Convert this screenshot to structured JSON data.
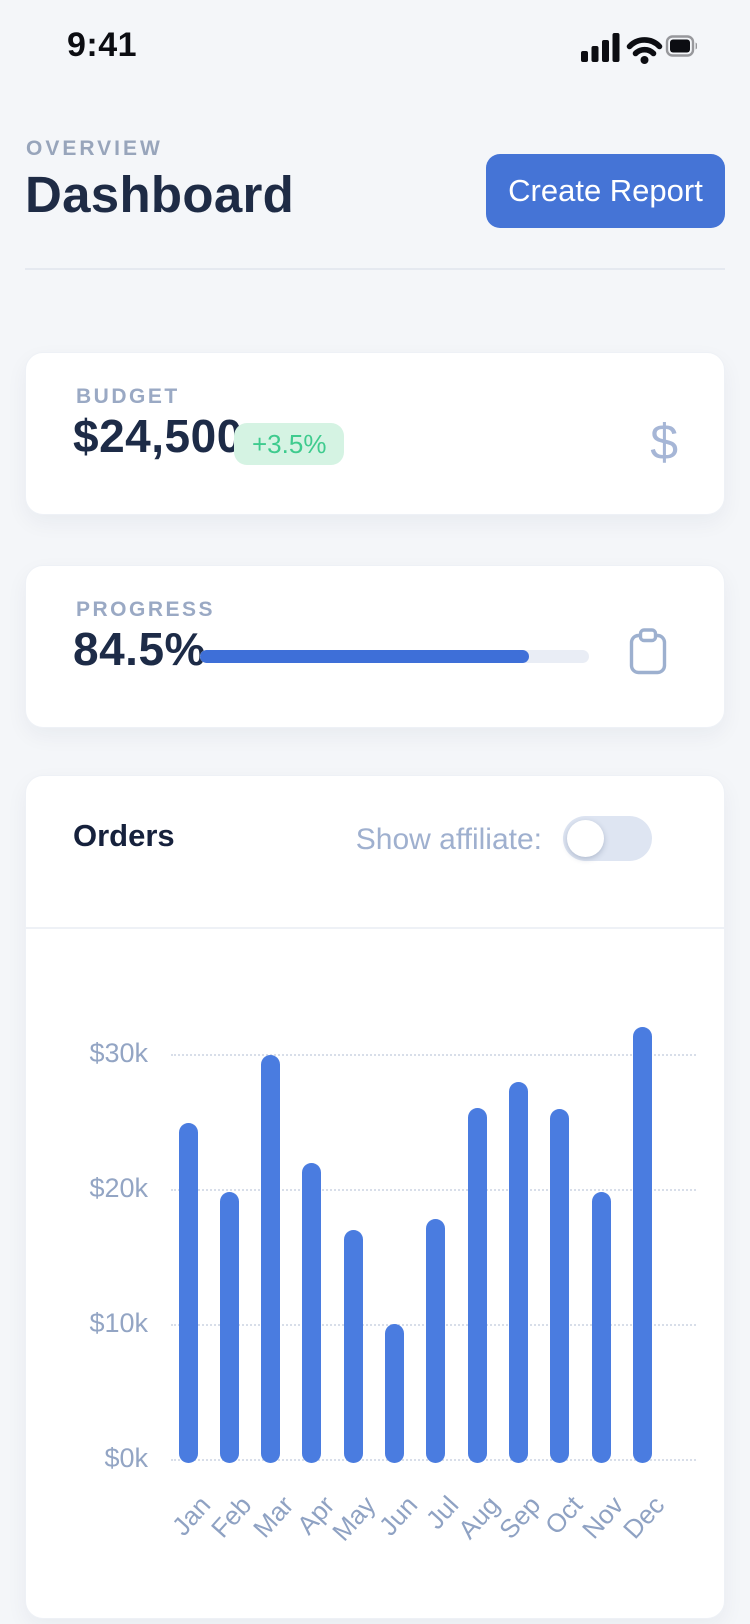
{
  "status_bar": {
    "time": "9:41"
  },
  "header": {
    "eyebrow": "OVERVIEW",
    "title": "Dashboard",
    "create_report_label": "Create Report"
  },
  "budget_card": {
    "label": "BUDGET",
    "value": "$24,500",
    "delta": "+3.5%",
    "icon": "dollar-icon",
    "delta_color": "#3ecb8e",
    "delta_bg": "#d5f3e3"
  },
  "progress_card": {
    "label": "PROGRESS",
    "value": "84.5%",
    "percent": 84.5,
    "icon": "clipboard-icon",
    "fill_color": "#3e6fd8"
  },
  "orders_card": {
    "title": "Orders",
    "toggle_label": "Show affiliate:",
    "toggle_state": "off"
  },
  "chart_data": {
    "type": "bar",
    "title": "Orders",
    "categories": [
      "Jan",
      "Feb",
      "Mar",
      "Apr",
      "May",
      "Jun",
      "Jul",
      "Aug",
      "Sep",
      "Oct",
      "Nov",
      "Dec"
    ],
    "values": [
      24.9,
      19.8,
      29.9,
      21.9,
      17.0,
      10.0,
      17.8,
      26.0,
      27.9,
      25.9,
      19.8,
      32.0
    ],
    "unit": "$k (USD thousands)",
    "yticks": [
      0,
      10,
      20,
      30
    ],
    "ytick_labels": [
      "$0k",
      "$10k",
      "$20k",
      "$30k"
    ],
    "ylim": [
      0,
      39
    ],
    "grid": "horizontal-dotted",
    "legend": "none",
    "bar_color": "#4a7ce0"
  },
  "colors": {
    "accent_blue": "#4574d6",
    "bar_blue": "#4a7ce0",
    "background": "#f4f6f9",
    "navy_text": "#1d2b47",
    "muted_label": "#9aa9c4"
  }
}
